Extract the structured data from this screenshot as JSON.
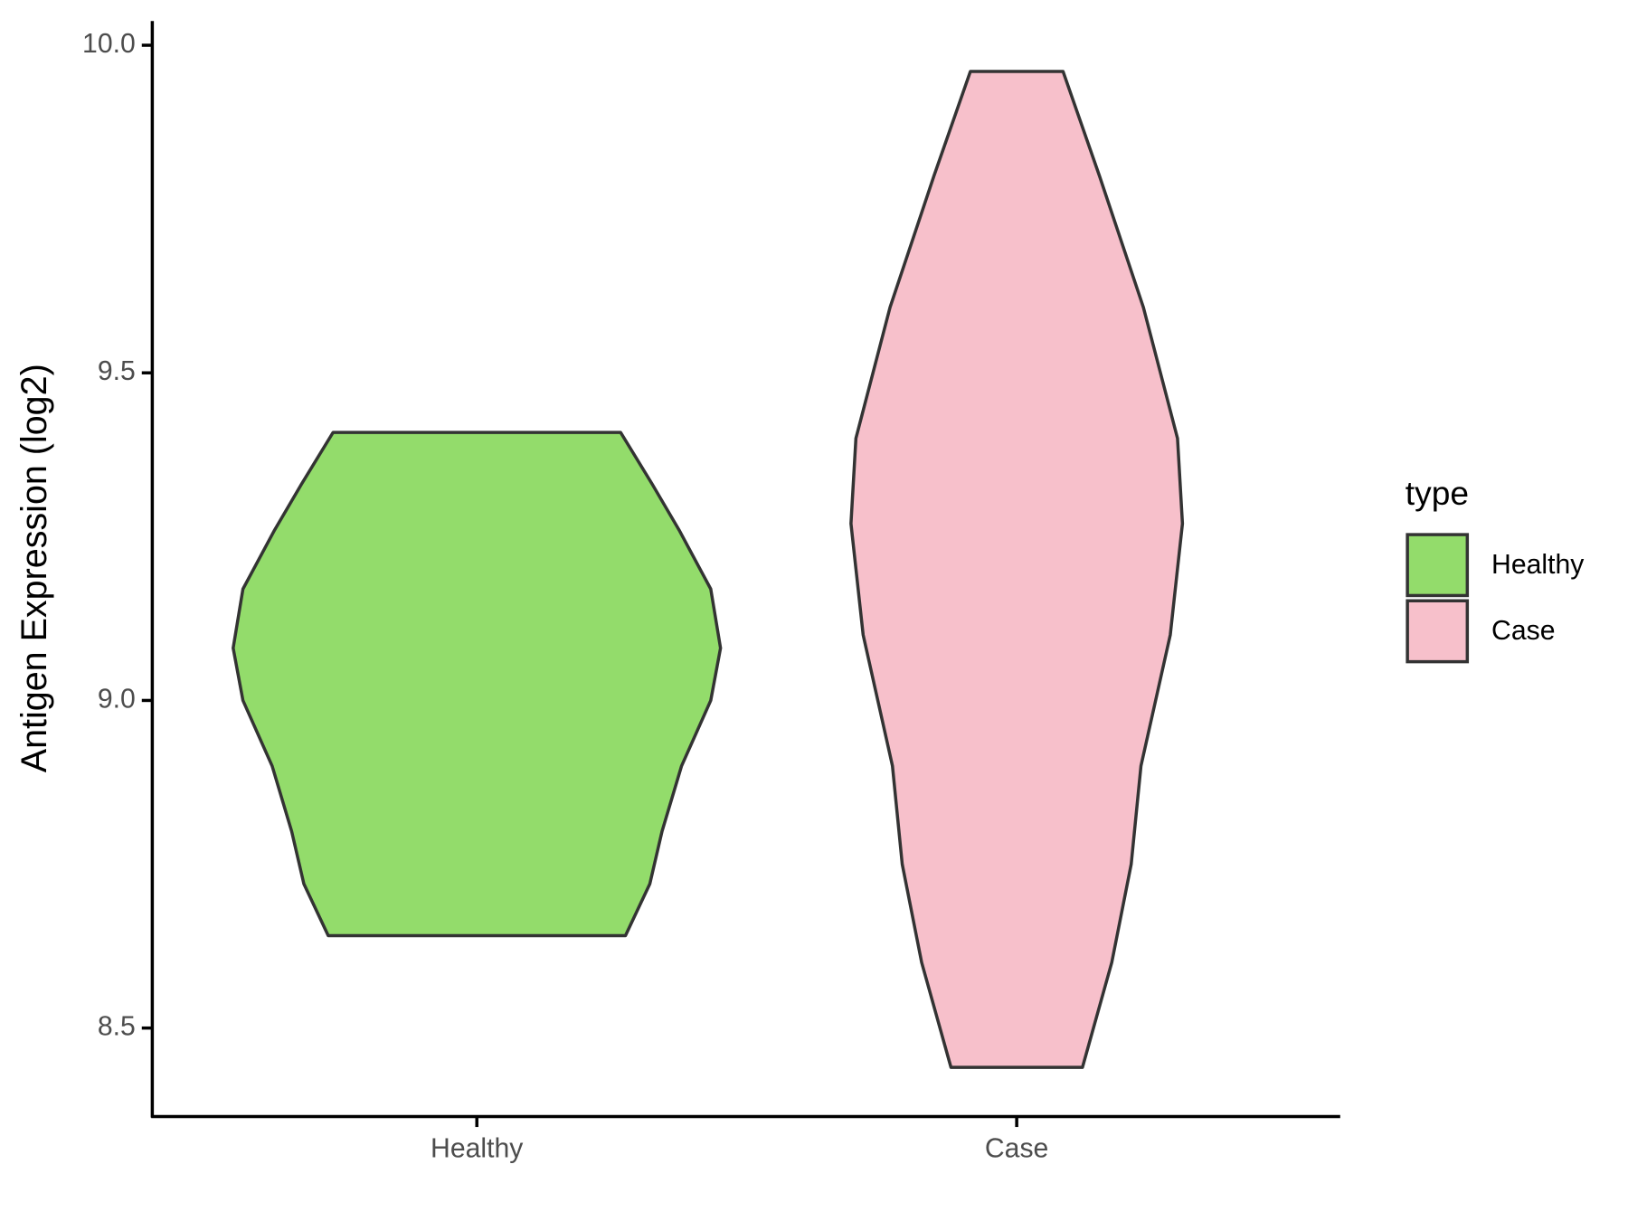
{
  "chart_data": {
    "type": "violin",
    "y_label": "Antigen Expression (log2)",
    "categories": [
      "Healthy",
      "Case"
    ],
    "series": [
      {
        "name": "Healthy",
        "color": "#93dc6b",
        "y": [
          9.409,
          9.33,
          9.26,
          9.17,
          9.08,
          9.0,
          8.9,
          8.8,
          8.72,
          8.641
        ],
        "density": [
          0.59,
          0.72,
          0.83,
          0.96,
          1.0,
          0.96,
          0.84,
          0.76,
          0.71,
          0.61
        ]
      },
      {
        "name": "Case",
        "color": "#f7c0cb",
        "y": [
          9.96,
          9.8,
          9.6,
          9.4,
          9.27,
          9.1,
          8.9,
          8.75,
          8.6,
          8.44
        ],
        "density": [
          0.19,
          0.34,
          0.52,
          0.66,
          0.68,
          0.63,
          0.51,
          0.47,
          0.39,
          0.27
        ]
      }
    ],
    "ylim": [
      8.365,
      10.037
    ],
    "yticks": [
      8.5,
      {
        "value": 9,
        "label": "9.0"
      },
      9.5,
      {
        "value": 10,
        "label": "10.0"
      }
    ],
    "legend_title": "type",
    "legend": "right"
  }
}
